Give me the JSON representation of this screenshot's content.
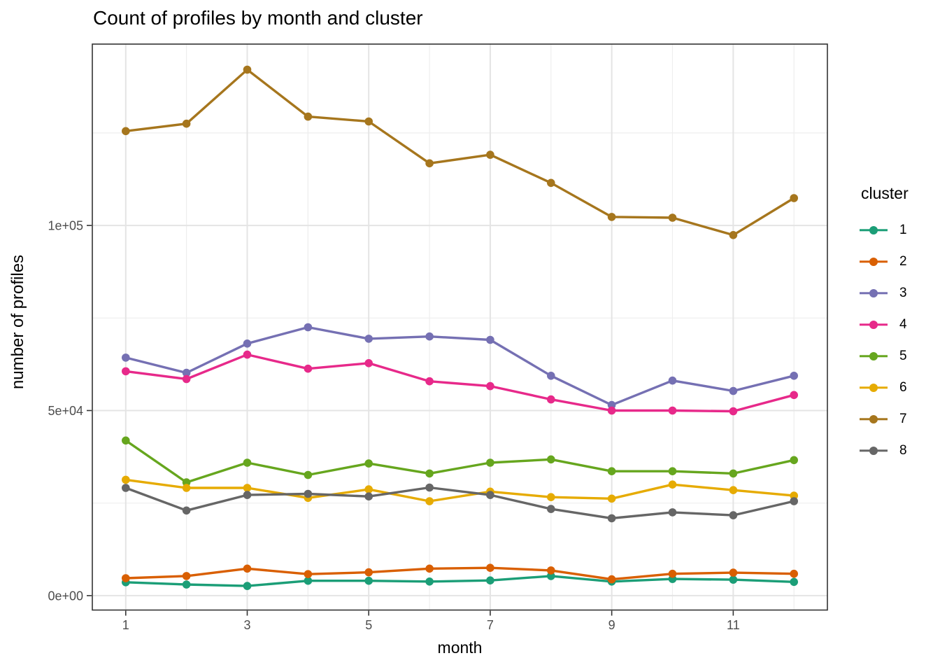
{
  "page_title": "Count of profiles by month and cluster",
  "chart_data": {
    "type": "line",
    "title": "Count of profiles by month and cluster",
    "xlabel": "month",
    "ylabel": "number of profiles",
    "legend_title": "cluster",
    "legend_position": "right",
    "grid": true,
    "x": [
      1,
      2,
      3,
      4,
      5,
      6,
      7,
      8,
      9,
      10,
      11,
      12
    ],
    "xlim": [
      0.45,
      12.55
    ],
    "ylim": [
      -3900,
      149000
    ],
    "x_major_ticks": {
      "values": [
        1,
        3,
        5,
        7,
        9,
        11
      ],
      "labels": [
        "1",
        "3",
        "5",
        "7",
        "9",
        "11"
      ]
    },
    "x_minor_ticks": [
      2,
      4,
      6,
      8,
      10,
      12
    ],
    "y_major_ticks": {
      "values": [
        0,
        50000,
        100000
      ],
      "labels": [
        "0e+00",
        "5e+04",
        "1e+05"
      ]
    },
    "y_minor_ticks": [
      25000,
      75000,
      125000
    ],
    "series": [
      {
        "name": "1",
        "color": "#1B9E77",
        "values": [
          3600,
          3000,
          2600,
          4000,
          4000,
          3800,
          4100,
          5300,
          3800,
          4500,
          4300,
          3700
        ]
      },
      {
        "name": "2",
        "color": "#D95F02",
        "values": [
          4700,
          5300,
          7300,
          5800,
          6300,
          7300,
          7500,
          6800,
          4400,
          5900,
          6200,
          5900
        ]
      },
      {
        "name": "3",
        "color": "#7570B3",
        "values": [
          64300,
          60200,
          68100,
          72500,
          69400,
          70000,
          69100,
          59400,
          51500,
          58100,
          55300,
          59400
        ]
      },
      {
        "name": "4",
        "color": "#E7298A",
        "values": [
          60600,
          58500,
          65100,
          61300,
          62800,
          57900,
          56600,
          53000,
          50000,
          50000,
          49800,
          54200
        ]
      },
      {
        "name": "5",
        "color": "#66A61E",
        "values": [
          41900,
          30600,
          35900,
          32600,
          35700,
          33000,
          35900,
          36800,
          33600,
          33600,
          33000,
          36600
        ]
      },
      {
        "name": "6",
        "color": "#E6AB02",
        "values": [
          31300,
          29100,
          29100,
          26400,
          28700,
          25500,
          28100,
          26600,
          26200,
          30000,
          28500,
          27000
        ]
      },
      {
        "name": "7",
        "color": "#A6761D",
        "values": [
          125500,
          127500,
          142100,
          129400,
          128100,
          116800,
          119100,
          111500,
          102300,
          102100,
          97400,
          107400
        ]
      },
      {
        "name": "8",
        "color": "#666666",
        "values": [
          29100,
          23000,
          27200,
          27500,
          26800,
          29200,
          27200,
          23400,
          20900,
          22500,
          21700,
          25500
        ]
      }
    ],
    "style": {
      "grid_major_color": "#e4e4e4",
      "grid_minor_color": "#eeeeee",
      "panel_border_color": "#333333",
      "tick_color": "#333333",
      "tick_label_color": "#4d4d4d"
    }
  }
}
